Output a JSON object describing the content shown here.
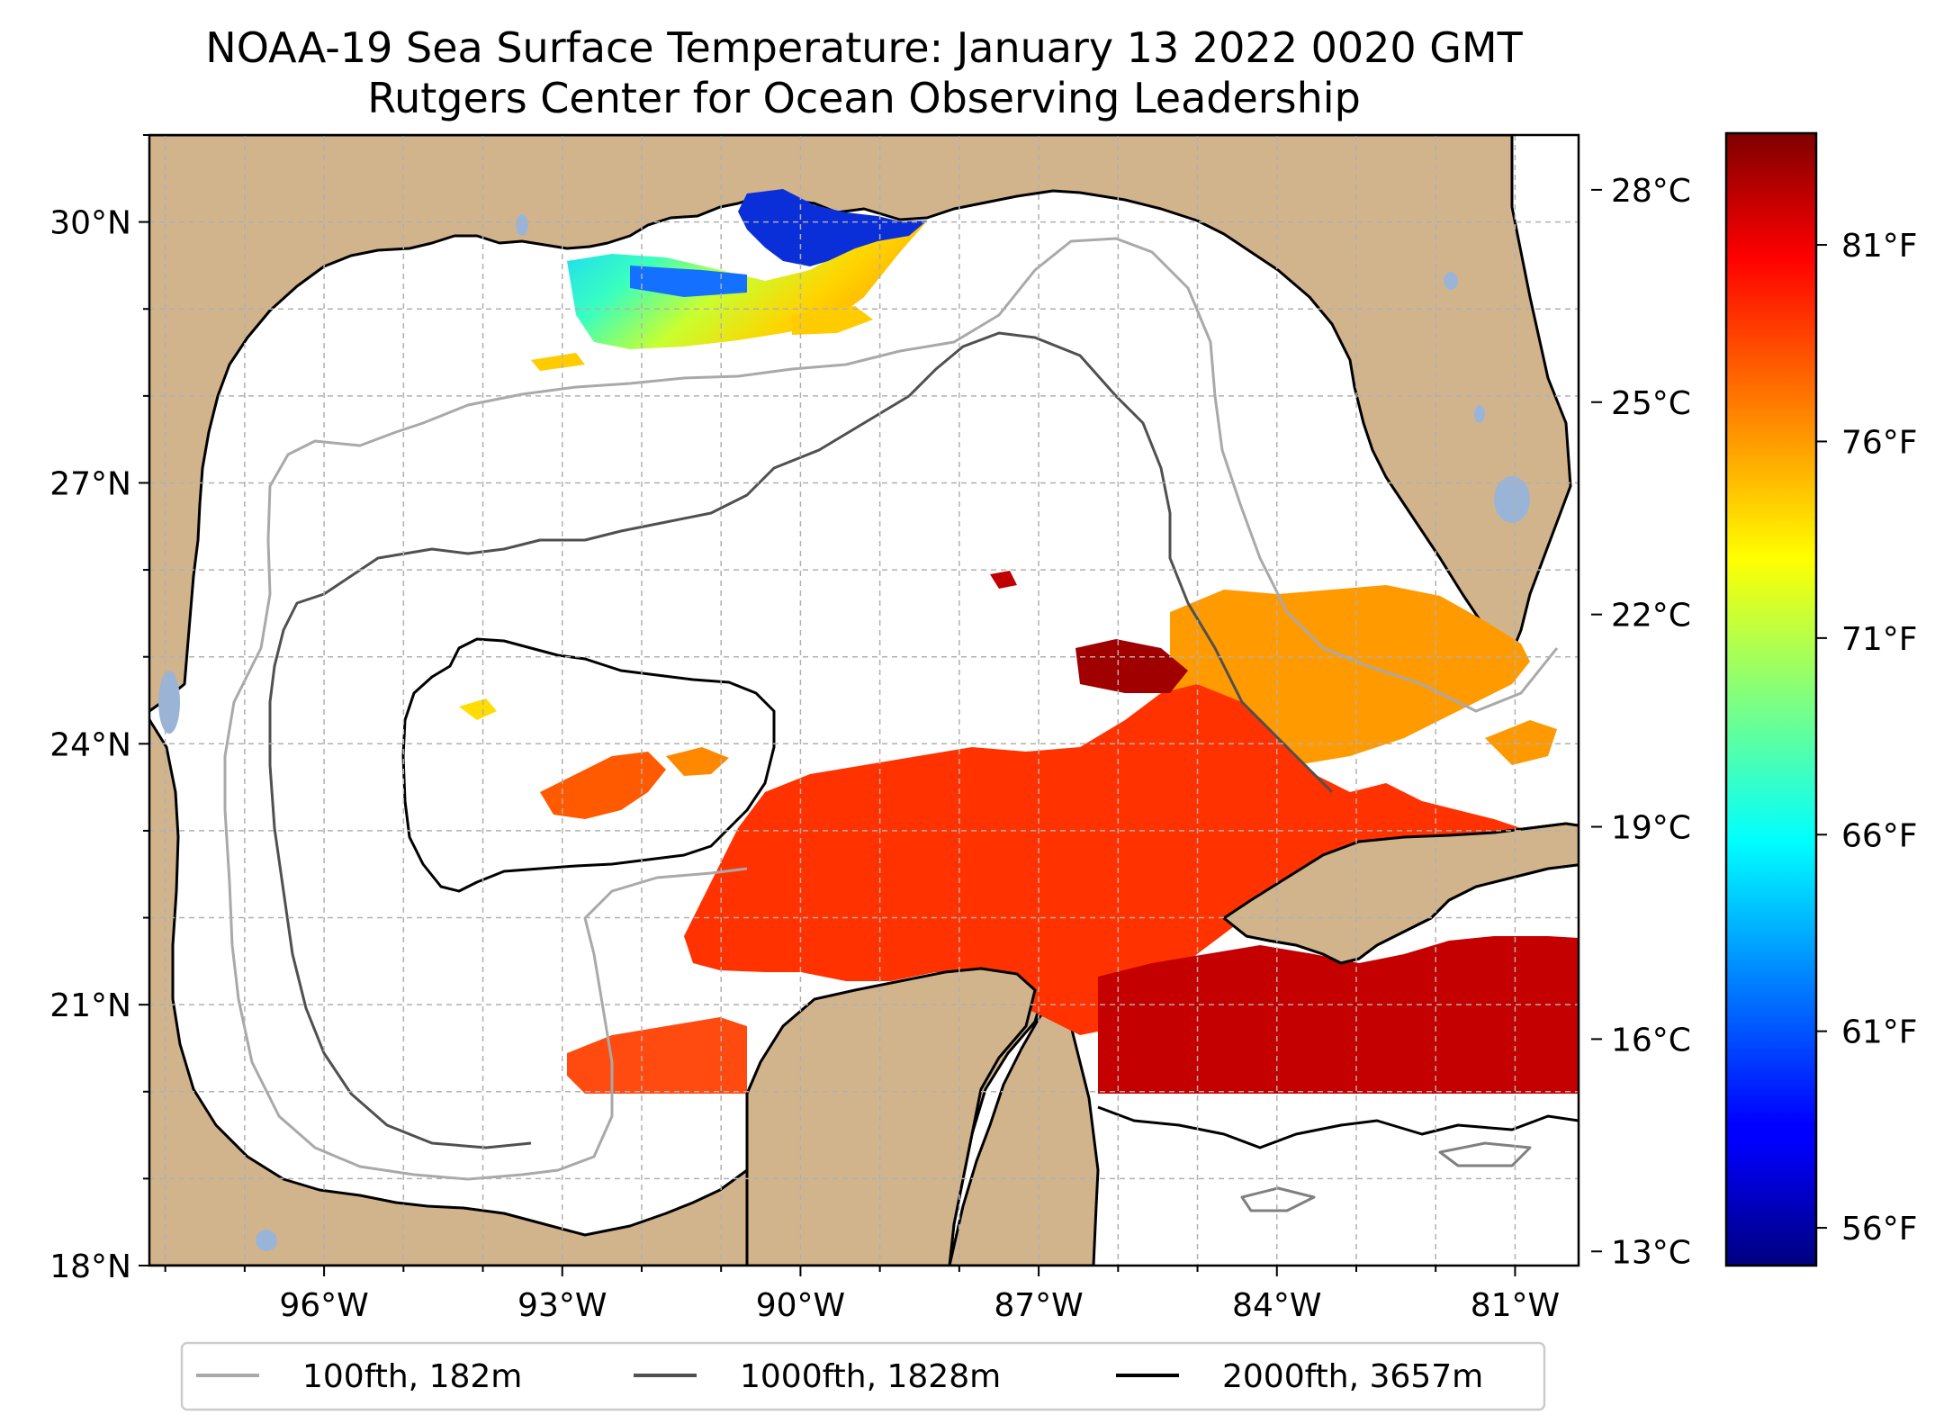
{
  "title": "NOAA-19 Sea Surface Temperature: January 13 2022 0020 GMT",
  "subtitle": "Rutgers Center for Ocean Observing Leadership",
  "map": {
    "lon_range": [
      -98.2,
      -80.2
    ],
    "lat_range": [
      18,
      31
    ],
    "lon_ticks": [
      {
        "value": -96,
        "label": "96°W"
      },
      {
        "value": -93,
        "label": "93°W"
      },
      {
        "value": -90,
        "label": "90°W"
      },
      {
        "value": -87,
        "label": "87°W"
      },
      {
        "value": -84,
        "label": "84°W"
      },
      {
        "value": -81,
        "label": "81°W"
      }
    ],
    "lat_ticks": [
      {
        "value": 18,
        "label": "18°N"
      },
      {
        "value": 21,
        "label": "21°N"
      },
      {
        "value": 24,
        "label": "24°N"
      },
      {
        "value": 27,
        "label": "27°N"
      },
      {
        "value": 30,
        "label": "30°N"
      }
    ],
    "gridlines": true,
    "colors": {
      "land": "#d2b48c",
      "ocean": "#ffffff",
      "lakes": "#9ab4d8",
      "grid": "#b0b0b0"
    }
  },
  "colorbar": {
    "colormap": "jet",
    "celsius_range": [
      12.8,
      28.8
    ],
    "celsius_ticks": [
      {
        "value": 28,
        "label": "28°C"
      },
      {
        "value": 25,
        "label": "25°C"
      },
      {
        "value": 22,
        "label": "22°C"
      },
      {
        "value": 19,
        "label": "19°C"
      },
      {
        "value": 16,
        "label": "16°C"
      },
      {
        "value": 13,
        "label": "13°C"
      }
    ],
    "fahrenheit_ticks": [
      {
        "value": 81,
        "label": "81°F"
      },
      {
        "value": 76,
        "label": "76°F"
      },
      {
        "value": 71,
        "label": "71°F"
      },
      {
        "value": 66,
        "label": "66°F"
      },
      {
        "value": 61,
        "label": "61°F"
      },
      {
        "value": 56,
        "label": "56°F"
      }
    ]
  },
  "legend": {
    "placement": "bottom-center",
    "items": [
      {
        "label": "100fth, 182m",
        "color": "#a9a9a9"
      },
      {
        "label": "1000fth, 1828m",
        "color": "#505050"
      },
      {
        "label": "2000fth, 3657m",
        "color": "#000000"
      }
    ]
  }
}
